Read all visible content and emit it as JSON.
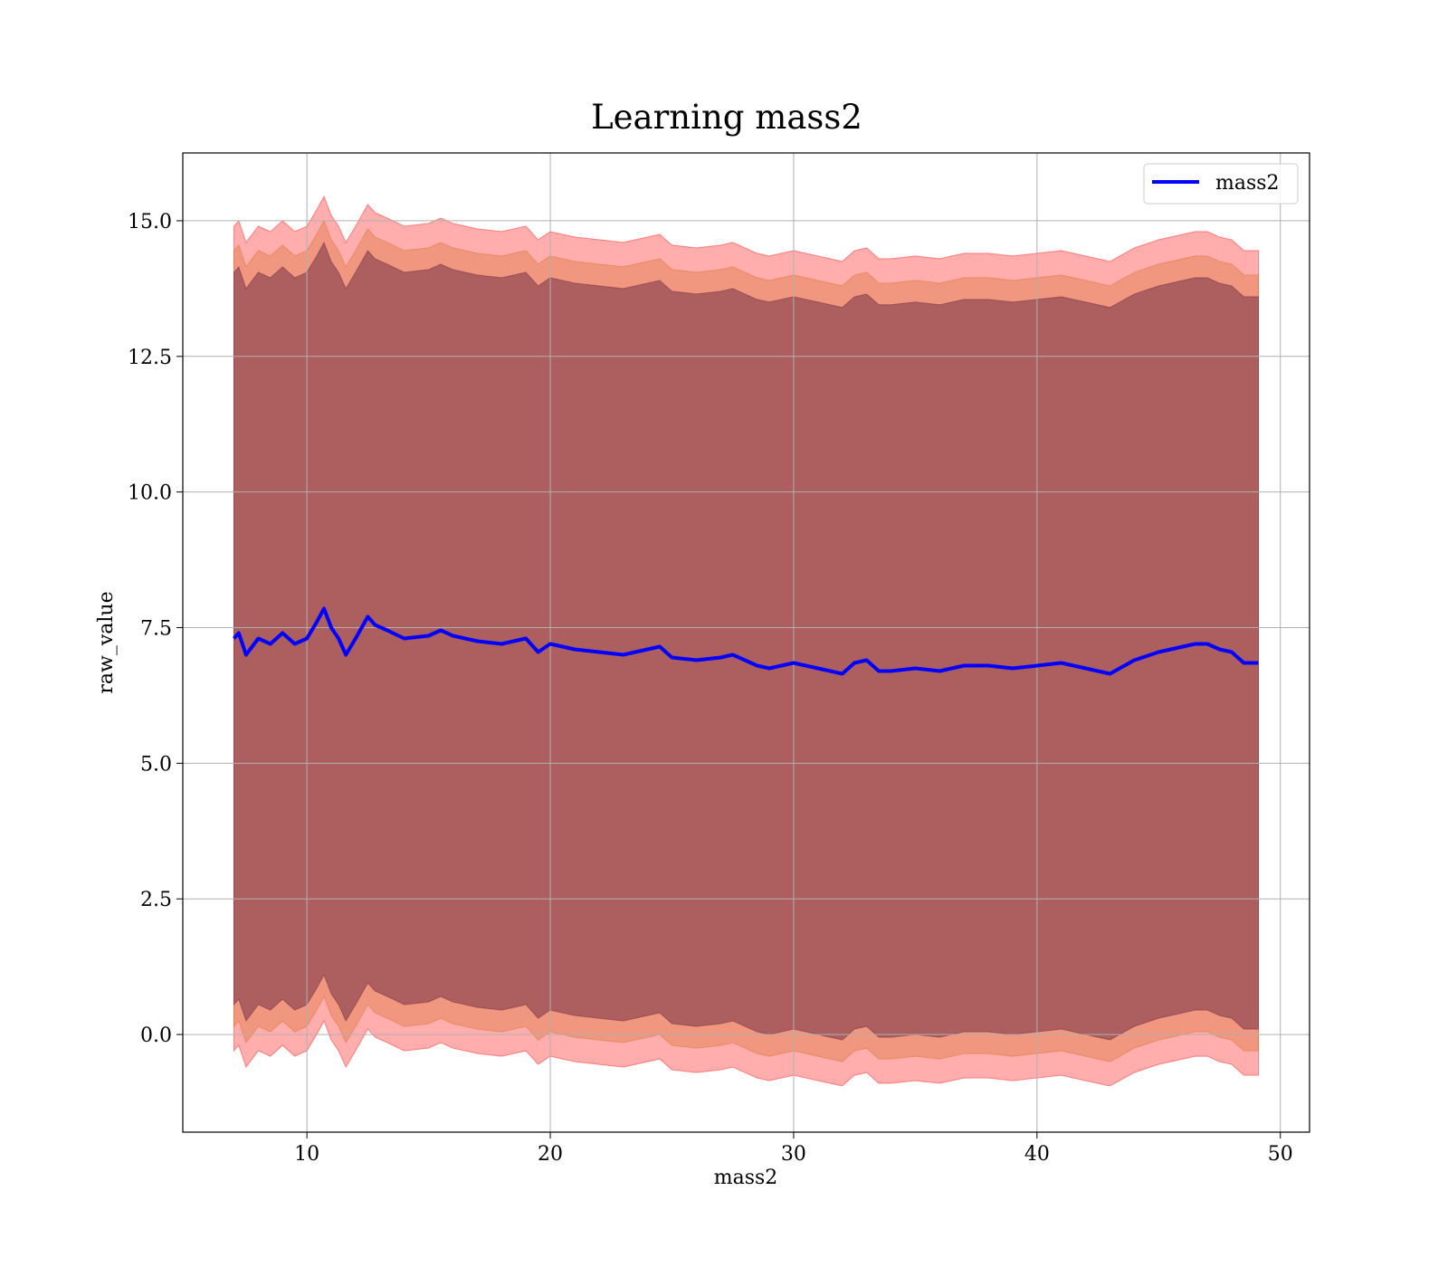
{
  "chart_data": {
    "type": "line",
    "title": "Learning mass2",
    "xlabel": "mass2",
    "ylabel": "raw_value",
    "xlim": [
      4.9,
      51.2
    ],
    "ylim": [
      -1.8,
      16.25
    ],
    "x_ticks": [
      10,
      20,
      30,
      40,
      50
    ],
    "x_tick_labels": [
      "10",
      "20",
      "30",
      "40",
      "50"
    ],
    "y_ticks": [
      0.0,
      2.5,
      5.0,
      7.5,
      10.0,
      12.5,
      15.0
    ],
    "y_tick_labels": [
      "0.0",
      "2.5",
      "5.0",
      "7.5",
      "10.0",
      "12.5",
      "15.0"
    ],
    "grid": true,
    "legend_position": "top-right",
    "series": [
      {
        "name": "mass2",
        "color": "#0000ff",
        "x": [
          7.0,
          7.2,
          7.5,
          8.0,
          8.5,
          9.0,
          9.5,
          10.0,
          10.4,
          10.7,
          11.0,
          11.3,
          11.6,
          12.0,
          12.5,
          12.8,
          13.3,
          14.0,
          15.0,
          15.5,
          16.0,
          17.0,
          18.0,
          19.0,
          19.5,
          20.0,
          21.0,
          22.0,
          23.0,
          24.0,
          24.5,
          25.0,
          26.0,
          27.0,
          27.5,
          28.5,
          29.0,
          30.0,
          31.0,
          32.0,
          32.5,
          33.0,
          33.5,
          34.0,
          35.0,
          36.0,
          37.0,
          38.0,
          39.0,
          40.0,
          41.0,
          42.0,
          43.0,
          44.0,
          45.0,
          46.0,
          46.5,
          47.0,
          47.5,
          48.0,
          48.5,
          49.1
        ],
        "values": [
          7.3,
          7.4,
          7.0,
          7.3,
          7.2,
          7.4,
          7.2,
          7.3,
          7.6,
          7.85,
          7.5,
          7.3,
          7.0,
          7.3,
          7.7,
          7.55,
          7.45,
          7.3,
          7.35,
          7.45,
          7.35,
          7.25,
          7.2,
          7.3,
          7.05,
          7.2,
          7.1,
          7.05,
          7.0,
          7.1,
          7.15,
          6.95,
          6.9,
          6.95,
          7.0,
          6.8,
          6.75,
          6.85,
          6.75,
          6.65,
          6.85,
          6.9,
          6.7,
          6.7,
          6.75,
          6.7,
          6.8,
          6.8,
          6.75,
          6.8,
          6.85,
          6.75,
          6.65,
          6.9,
          7.05,
          7.15,
          7.2,
          7.2,
          7.1,
          7.05,
          6.85,
          6.85
        ]
      }
    ],
    "bands": [
      {
        "name": "outer",
        "color": "#ff0000",
        "opacity": 0.32,
        "half_width": 7.6
      },
      {
        "name": "middle",
        "color": "#d2691e",
        "opacity": 0.32,
        "half_width": 7.15
      },
      {
        "name": "inner",
        "color": "#5a1a3a",
        "opacity": 0.45,
        "half_width": 6.75
      }
    ]
  }
}
